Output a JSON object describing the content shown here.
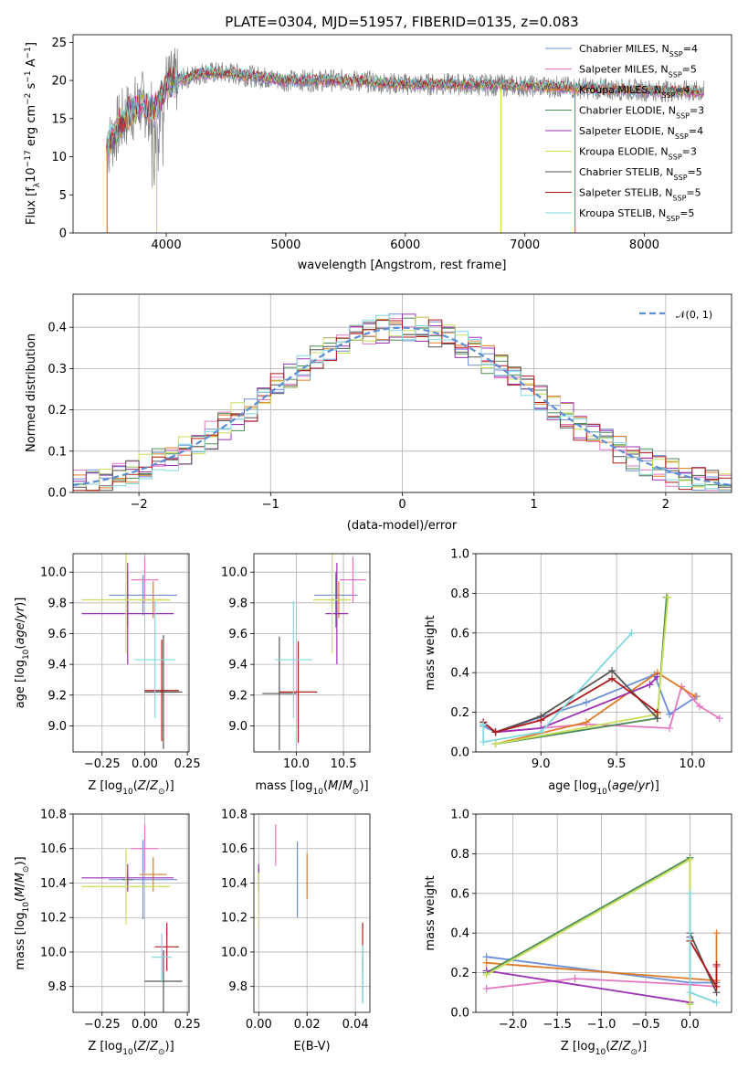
{
  "figure_title": "PLATE=0304, MJD=51957, FIBERID=0135, z=0.083",
  "colors": {
    "Chabrier MILES": "#6b8fd6",
    "Salpeter MILES": "#e377c2",
    "Kroupa MILES": "#e07b28",
    "Chabrier ELODIE": "#4c8c54",
    "Salpeter ELODIE": "#9b30b5",
    "Kroupa ELODIE": "#c8e05a",
    "Chabrier STELIB": "#555555",
    "Salpeter STELIB": "#b01a1a",
    "Kroupa STELIB": "#7fd8e0",
    "data": "#808080",
    "normal": "#5b8ed6"
  },
  "chart_data": [
    {
      "id": "spectrum",
      "type": "line",
      "title": "PLATE=0304, MJD=51957, FIBERID=0135, z=0.083",
      "xlabel": "wavelength [Angstrom, rest frame]",
      "ylabel": "Flux [f_λ 10^-17 erg cm^-2 s^-1 A^-1]",
      "xlim": [
        3220,
        8730
      ],
      "ylim": [
        0,
        26
      ],
      "xticks": [
        4000,
        5000,
        6000,
        7000,
        8000
      ],
      "yticks": [
        0,
        5,
        10,
        15,
        20,
        25
      ],
      "legend_position": "right",
      "legend": [
        {
          "name": "Chabrier MILES",
          "nssp": "4"
        },
        {
          "name": "Salpeter MILES",
          "nssp": "5"
        },
        {
          "name": "Kroupa MILES",
          "nssp": "4"
        },
        {
          "name": "Chabrier ELODIE",
          "nssp": "3"
        },
        {
          "name": "Salpeter ELODIE",
          "nssp": "4"
        },
        {
          "name": "Kroupa ELODIE",
          "nssp": "3"
        },
        {
          "name": "Chabrier STELIB",
          "nssp": "5"
        },
        {
          "name": "Salpeter STELIB",
          "nssp": "5"
        },
        {
          "name": "Kroupa STELIB",
          "nssp": "5"
        }
      ],
      "continuum_x": [
        3500,
        3600,
        3700,
        3800,
        3900,
        4000,
        4100,
        4300,
        4500,
        5000,
        5500,
        6000,
        6500,
        7000,
        7500,
        8000,
        8500
      ],
      "continuum_y": [
        11,
        14,
        16,
        17,
        16,
        19.5,
        20,
        21,
        21,
        20,
        20,
        19.5,
        19.5,
        19.3,
        19,
        18.7,
        18.5
      ],
      "dips": [
        {
          "series": "Kroupa MILES",
          "x": 3505,
          "to": 0
        },
        {
          "series": "Kroupa ELODIE",
          "x": 3920,
          "to": 0
        },
        {
          "series": "Kroupa ELODIE",
          "x": 6800,
          "to": 0
        },
        {
          "series": "Kroupa MILES",
          "x": 7420,
          "to": 0
        }
      ]
    },
    {
      "id": "residuals",
      "type": "histogram",
      "xlabel": "(data-model)/error",
      "ylabel": "Normed distribution",
      "xlim": [
        -2.5,
        2.5
      ],
      "ylim": [
        0,
        0.48
      ],
      "xticks": [
        -2,
        -1,
        0,
        1,
        2
      ],
      "yticks": [
        0.0,
        0.1,
        0.2,
        0.3,
        0.4
      ],
      "grid": true,
      "legend_position": "top-right",
      "legend": [
        "𝒩(0, 1)"
      ],
      "bin_width": 0.1
    },
    {
      "id": "age_vs_Z",
      "type": "errorbar",
      "xlabel": "Z [log10(Z/Z⊙)]",
      "ylabel": "age  [log10(age/yr)]",
      "xlim": [
        -0.42,
        0.26
      ],
      "ylim": [
        8.83,
        10.12
      ],
      "xticks": [
        -0.25,
        0.0,
        0.25
      ],
      "yticks": [
        9.0,
        9.2,
        9.4,
        9.6,
        9.8,
        10.0
      ],
      "grid": true,
      "points": [
        {
          "series": "Chabrier MILES",
          "x": -0.01,
          "xerr": 0.2,
          "y": 9.85,
          "yerr": 0.13
        },
        {
          "series": "Salpeter MILES",
          "x": 0.0,
          "xerr": 0.08,
          "y": 9.95,
          "yerr": 0.15
        },
        {
          "series": "Kroupa MILES",
          "x": 0.05,
          "xerr": 0.08,
          "y": 9.82,
          "yerr": 0.12
        },
        {
          "series": "Chabrier ELODIE",
          "x": -0.1,
          "xerr": 0.03,
          "y": 9.82,
          "yerr": 0.18
        },
        {
          "series": "Salpeter ELODIE",
          "x": -0.1,
          "xerr": 0.27,
          "y": 9.73,
          "yerr": 0.33
        },
        {
          "series": "Kroupa ELODIE",
          "x": -0.11,
          "xerr": 0.26,
          "y": 9.82,
          "yerr": 0.35
        },
        {
          "series": "Chabrier STELIB",
          "x": 0.11,
          "xerr": 0.11,
          "y": 9.22,
          "yerr": 0.37
        },
        {
          "series": "Salpeter STELIB",
          "x": 0.1,
          "xerr": 0.1,
          "y": 9.23,
          "yerr": 0.33
        },
        {
          "series": "Kroupa STELIB",
          "x": 0.06,
          "xerr": 0.12,
          "y": 9.43,
          "yerr": 0.38
        }
      ]
    },
    {
      "id": "age_vs_mass",
      "type": "errorbar",
      "xlabel": "mass [log10(M/M⊙)]",
      "xlim": [
        9.55,
        10.78
      ],
      "ylim": [
        8.83,
        10.12
      ],
      "xticks": [
        10.0,
        10.5
      ],
      "yticks": [
        9.0,
        9.2,
        9.4,
        9.6,
        9.8,
        10.0
      ],
      "grid": true,
      "points": [
        {
          "series": "Chabrier MILES",
          "x": 10.42,
          "xerr": 0.23,
          "y": 9.85,
          "yerr": 0.13
        },
        {
          "series": "Salpeter MILES",
          "x": 10.6,
          "xerr": 0.14,
          "y": 9.95,
          "yerr": 0.15
        },
        {
          "series": "Kroupa MILES",
          "x": 10.45,
          "xerr": 0.1,
          "y": 9.82,
          "yerr": 0.12
        },
        {
          "series": "Chabrier ELODIE",
          "x": 10.42,
          "xerr": 0.05,
          "y": 9.82,
          "yerr": 0.18
        },
        {
          "series": "Salpeter ELODIE",
          "x": 10.43,
          "xerr": 0.12,
          "y": 9.73,
          "yerr": 0.33
        },
        {
          "series": "Kroupa ELODIE",
          "x": 10.38,
          "xerr": 0.2,
          "y": 9.82,
          "yerr": 0.35
        },
        {
          "series": "Chabrier STELIB",
          "x": 9.82,
          "xerr": 0.18,
          "y": 9.21,
          "yerr": 0.37
        },
        {
          "series": "Salpeter STELIB",
          "x": 10.02,
          "xerr": 0.2,
          "y": 9.22,
          "yerr": 0.33
        },
        {
          "series": "Kroupa STELIB",
          "x": 9.97,
          "xerr": 0.2,
          "y": 9.43,
          "yerr": 0.38
        }
      ]
    },
    {
      "id": "weight_vs_age",
      "type": "line",
      "xlabel": "age  [log10(age/yr)]",
      "ylabel": "mass weight",
      "xlim": [
        8.57,
        10.26
      ],
      "ylim": [
        0,
        1.0
      ],
      "xticks": [
        9.0,
        9.5,
        10.0
      ],
      "yticks": [
        0.0,
        0.2,
        0.4,
        0.6,
        0.8,
        1.0
      ],
      "grid": true,
      "series": [
        {
          "name": "Chabrier MILES",
          "x": [
            8.62,
            8.7,
            9.3,
            9.75,
            9.85,
            10.03
          ],
          "y": [
            0.13,
            0.1,
            0.25,
            0.39,
            0.19,
            0.28
          ]
        },
        {
          "name": "Salpeter MILES",
          "x": [
            8.62,
            8.7,
            9.3,
            9.85,
            9.93,
            10.05,
            10.18
          ],
          "y": [
            0.15,
            0.1,
            0.14,
            0.12,
            0.33,
            0.23,
            0.17
          ]
        },
        {
          "name": "Kroupa MILES",
          "x": [
            8.7,
            9.3,
            9.77,
            10.02
          ],
          "y": [
            0.04,
            0.15,
            0.4,
            0.28
          ]
        },
        {
          "name": "Chabrier ELODIE",
          "x": [
            8.7,
            9.77,
            9.83
          ],
          "y": [
            0.04,
            0.17,
            0.78
          ]
        },
        {
          "name": "Salpeter ELODIE",
          "x": [
            8.7,
            9.0,
            9.72,
            9.77
          ],
          "y": [
            0.1,
            0.12,
            0.34,
            0.38
          ]
        },
        {
          "name": "Kroupa ELODIE",
          "x": [
            8.7,
            9.77,
            9.84
          ],
          "y": [
            0.04,
            0.19,
            0.78
          ]
        },
        {
          "name": "Chabrier STELIB",
          "x": [
            8.62,
            8.7,
            9.0,
            9.47,
            9.77
          ],
          "y": [
            0.15,
            0.1,
            0.18,
            0.41,
            0.17
          ]
        },
        {
          "name": "Salpeter STELIB",
          "x": [
            8.62,
            8.7,
            9.0,
            9.47,
            9.77
          ],
          "y": [
            0.15,
            0.1,
            0.16,
            0.37,
            0.2
          ]
        },
        {
          "name": "Kroupa STELIB",
          "x": [
            8.62,
            8.62,
            9.0,
            9.6
          ],
          "y": [
            0.14,
            0.05,
            0.1,
            0.6
          ]
        }
      ]
    },
    {
      "id": "mass_vs_Z",
      "type": "errorbar",
      "xlabel": "Z [log10(Z/Z⊙)]",
      "ylabel": "mass [log10(M/M⊙)]",
      "xlim": [
        -0.42,
        0.26
      ],
      "ylim": [
        9.65,
        10.8
      ],
      "xticks": [
        -0.25,
        0.0,
        0.25
      ],
      "yticks": [
        9.8,
        10.0,
        10.2,
        10.4,
        10.6,
        10.8
      ],
      "grid": true,
      "points": [
        {
          "series": "Chabrier MILES",
          "x": -0.01,
          "xerr": 0.2,
          "y": 10.42,
          "yerr": 0.23
        },
        {
          "series": "Salpeter MILES",
          "x": 0.0,
          "xerr": 0.08,
          "y": 10.6,
          "yerr": 0.14
        },
        {
          "series": "Kroupa MILES",
          "x": 0.05,
          "xerr": 0.08,
          "y": 10.45,
          "yerr": 0.1
        },
        {
          "series": "Chabrier ELODIE",
          "x": -0.1,
          "xerr": 0.03,
          "y": 10.42,
          "yerr": 0.05
        },
        {
          "series": "Salpeter ELODIE",
          "x": -0.1,
          "xerr": 0.27,
          "y": 10.43,
          "yerr": 0.08
        },
        {
          "series": "Kroupa ELODIE",
          "x": -0.11,
          "xerr": 0.26,
          "y": 10.38,
          "yerr": 0.22
        },
        {
          "series": "Chabrier STELIB",
          "x": 0.11,
          "xerr": 0.11,
          "y": 9.83,
          "yerr": 0.18
        },
        {
          "series": "Salpeter STELIB",
          "x": 0.13,
          "xerr": 0.07,
          "y": 10.03,
          "yerr": 0.14
        },
        {
          "series": "Kroupa STELIB",
          "x": 0.1,
          "xerr": 0.06,
          "y": 9.97,
          "yerr": 0.14
        }
      ]
    },
    {
      "id": "mass_vs_ebv",
      "type": "errorbar",
      "xlabel": "E(B-V)",
      "xlim": [
        -0.002,
        0.046
      ],
      "ylim": [
        9.65,
        10.8
      ],
      "xticks": [
        0.0,
        0.02,
        0.04
      ],
      "yticks": [
        9.8,
        10.0,
        10.2,
        10.4,
        10.6,
        10.8
      ],
      "grid": true,
      "points": [
        {
          "series": "Chabrier MILES",
          "x": 0.016,
          "xerr": 0,
          "y": 10.42,
          "yerr": 0.22
        },
        {
          "series": "Salpeter MILES",
          "x": 0.007,
          "xerr": 0,
          "y": 10.62,
          "yerr": 0.12
        },
        {
          "series": "Kroupa MILES",
          "x": 0.02,
          "xerr": 0,
          "y": 10.44,
          "yerr": 0.13
        },
        {
          "series": "Chabrier ELODIE",
          "x": 0.0,
          "xerr": 0,
          "y": 10.42,
          "yerr": 0.07
        },
        {
          "series": "Salpeter ELODIE",
          "x": 0.0,
          "xerr": 0,
          "y": 10.45,
          "yerr": 0.06
        },
        {
          "series": "Kroupa ELODIE",
          "x": 0.0,
          "xerr": 0,
          "y": 10.3,
          "yerr": 0.16
        },
        {
          "series": "Chabrier STELIB",
          "x": 0.043,
          "xerr": 0,
          "y": 9.83,
          "yerr": 0.12
        },
        {
          "series": "Salpeter STELIB",
          "x": 0.043,
          "xerr": 0,
          "y": 10.03,
          "yerr": 0.14
        },
        {
          "series": "Kroupa STELIB",
          "x": 0.043,
          "xerr": 0,
          "y": 9.87,
          "yerr": 0.17
        }
      ]
    },
    {
      "id": "weight_vs_Z",
      "type": "line",
      "xlabel": "Z [log10(Z/Z⊙)]",
      "ylabel": "mass weight",
      "xlim": [
        -2.42,
        0.47
      ],
      "ylim": [
        0,
        1.0
      ],
      "xticks": [
        -2.0,
        -1.5,
        -1.0,
        -0.5,
        0.0
      ],
      "yticks": [
        0.0,
        0.2,
        0.4,
        0.6,
        0.8,
        1.0
      ],
      "grid": true,
      "series": [
        {
          "name": "Chabrier MILES",
          "x": [
            -2.3,
            0.0,
            0.3
          ],
          "y": [
            0.28,
            0.15,
            0.15
          ]
        },
        {
          "name": "Salpeter MILES",
          "x": [
            -2.3,
            -1.3,
            0.0,
            0.3,
            0.3
          ],
          "y": [
            0.12,
            0.17,
            0.14,
            0.13,
            0.23
          ]
        },
        {
          "name": "Kroupa MILES",
          "x": [
            -2.3,
            0.3,
            0.3
          ],
          "y": [
            0.25,
            0.16,
            0.4
          ]
        },
        {
          "name": "Chabrier ELODIE",
          "x": [
            -2.3,
            0.0,
            0.0
          ],
          "y": [
            0.2,
            0.78,
            0.04
          ]
        },
        {
          "name": "Salpeter ELODIE",
          "x": [
            -2.3,
            0.0,
            0.0
          ],
          "y": [
            0.21,
            0.05,
            0.38
          ]
        },
        {
          "name": "Kroupa ELODIE",
          "x": [
            -2.3,
            0.0,
            0.0
          ],
          "y": [
            0.19,
            0.77,
            0.04
          ]
        },
        {
          "name": "Chabrier STELIB",
          "x": [
            0.0,
            0.3
          ],
          "y": [
            0.4,
            0.1
          ]
        },
        {
          "name": "Salpeter STELIB",
          "x": [
            0.0,
            0.3,
            0.3
          ],
          "y": [
            0.36,
            0.13,
            0.24
          ]
        },
        {
          "name": "Kroupa STELIB",
          "x": [
            0.0,
            0.0,
            0.3
          ],
          "y": [
            0.6,
            0.1,
            0.05
          ]
        }
      ]
    }
  ]
}
